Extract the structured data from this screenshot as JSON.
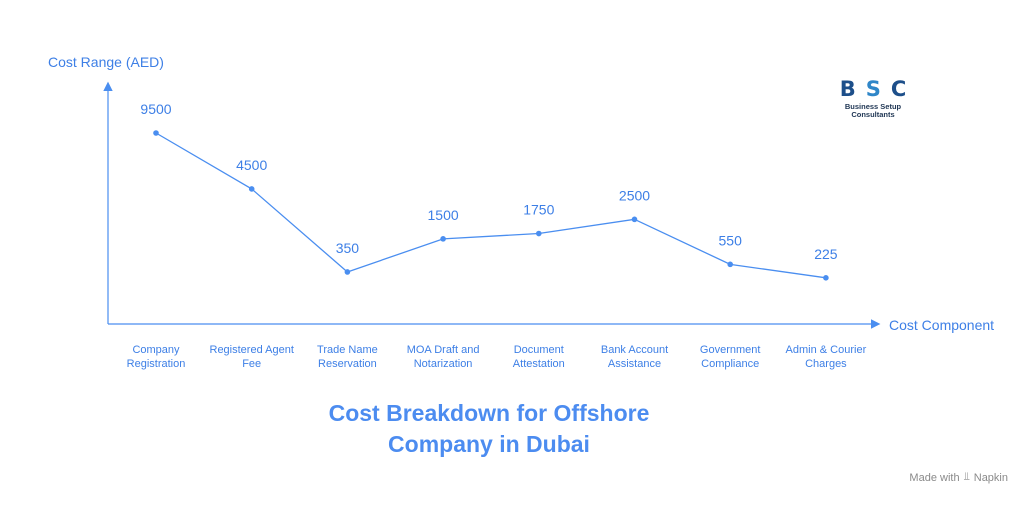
{
  "chart_data": {
    "type": "line",
    "title_lines": [
      "Cost Breakdown for Offshore",
      "Company in Dubai"
    ],
    "ylabel": "Cost Range (AED)",
    "xlabel": "Cost Component",
    "categories": [
      [
        "Company",
        "Registration"
      ],
      [
        "Registered Agent",
        "Fee"
      ],
      [
        "Trade Name",
        "Reservation"
      ],
      [
        "MOA Draft and",
        "Notarization"
      ],
      [
        "Document",
        "Attestation"
      ],
      [
        "Bank Account",
        "Assistance"
      ],
      [
        "Government",
        "Compliance"
      ],
      [
        "Admin & Courier",
        "Charges"
      ]
    ],
    "values": [
      9500,
      4500,
      350,
      1500,
      1750,
      2500,
      550,
      225
    ],
    "value_labels": [
      "9500",
      "4500",
      "350",
      "1500",
      "1750",
      "2500",
      "550",
      "225"
    ],
    "grid": false,
    "line_color": "#4a8ef0"
  },
  "logo": {
    "letters": [
      "B",
      "S",
      "C"
    ],
    "subtitle_lines": [
      "Business Setup",
      "Consultants"
    ]
  },
  "footer": {
    "made_with": "Made with",
    "brand": "Napkin",
    "icon": "napkin-logo-icon"
  }
}
